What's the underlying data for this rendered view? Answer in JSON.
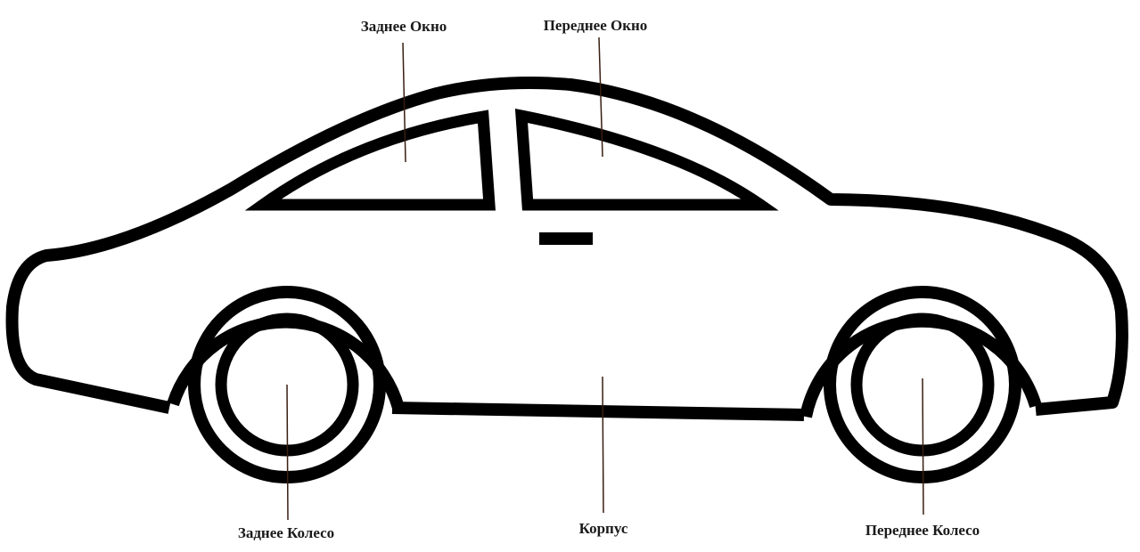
{
  "labels": {
    "rear_window": "Заднее Окно",
    "front_window": "Переднее Окно",
    "rear_wheel": "Заднее Колесо",
    "body": "Корпус",
    "front_wheel": "Переднее Колесо"
  },
  "colors": {
    "outline": "#000000",
    "leader_line": "#3a1e12",
    "label_text": "#1a1a1a",
    "background": "#ffffff"
  }
}
